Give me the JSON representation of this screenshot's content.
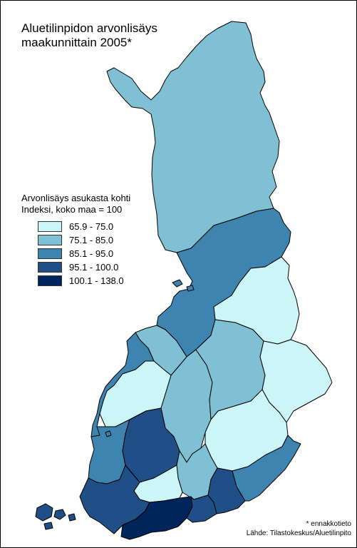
{
  "title": {
    "line1": "Aluetilinpidon arvonlisäys",
    "line2": "maakunnittain 2005*"
  },
  "legend": {
    "title_line1": "Arvonlisäys asukasta kohti",
    "title_line2": "Indeksi, koko maa = 100",
    "classes": [
      {
        "label": "65.9 - 75.0",
        "color": "#ccf5f8"
      },
      {
        "label": "75.1 - 85.0",
        "color": "#7fc0d4"
      },
      {
        "label": "85.1 - 95.0",
        "color": "#3e84b0"
      },
      {
        "label": "95.1 - 100.0",
        "color": "#1f4f86"
      },
      {
        "label": "100.1 - 138.0",
        "color": "#00245c"
      }
    ]
  },
  "footnote": {
    "preliminary": "* ennakkotieto",
    "source": "Lähde: Tilastokeskus/Aluetilinpito"
  },
  "regions": [
    {
      "name": "Lappi",
      "class": 1
    },
    {
      "name": "Pohjois-Pohjanmaa",
      "class": 2
    },
    {
      "name": "Kainuu",
      "class": 0
    },
    {
      "name": "Keski-Pohjanmaa",
      "class": 1
    },
    {
      "name": "Pohjanmaa",
      "class": 2
    },
    {
      "name": "Etelä-Pohjanmaa",
      "class": 0
    },
    {
      "name": "Keski-Suomi",
      "class": 1
    },
    {
      "name": "Pohjois-Savo",
      "class": 1
    },
    {
      "name": "Pohjois-Karjala",
      "class": 0
    },
    {
      "name": "Etelä-Savo",
      "class": 0
    },
    {
      "name": "Satakunta",
      "class": 2
    },
    {
      "name": "Pirkanmaa",
      "class": 3
    },
    {
      "name": "Päijät-Häme",
      "class": 1
    },
    {
      "name": "Kanta-Häme",
      "class": 0
    },
    {
      "name": "Varsinais-Suomi",
      "class": 3
    },
    {
      "name": "Uusimaa",
      "class": 4
    },
    {
      "name": "Itä-Uusimaa",
      "class": 3
    },
    {
      "name": "Kymenlaakso",
      "class": 3
    },
    {
      "name": "Etelä-Karjala",
      "class": 2
    },
    {
      "name": "Ahvenanmaa",
      "class": 3
    }
  ]
}
